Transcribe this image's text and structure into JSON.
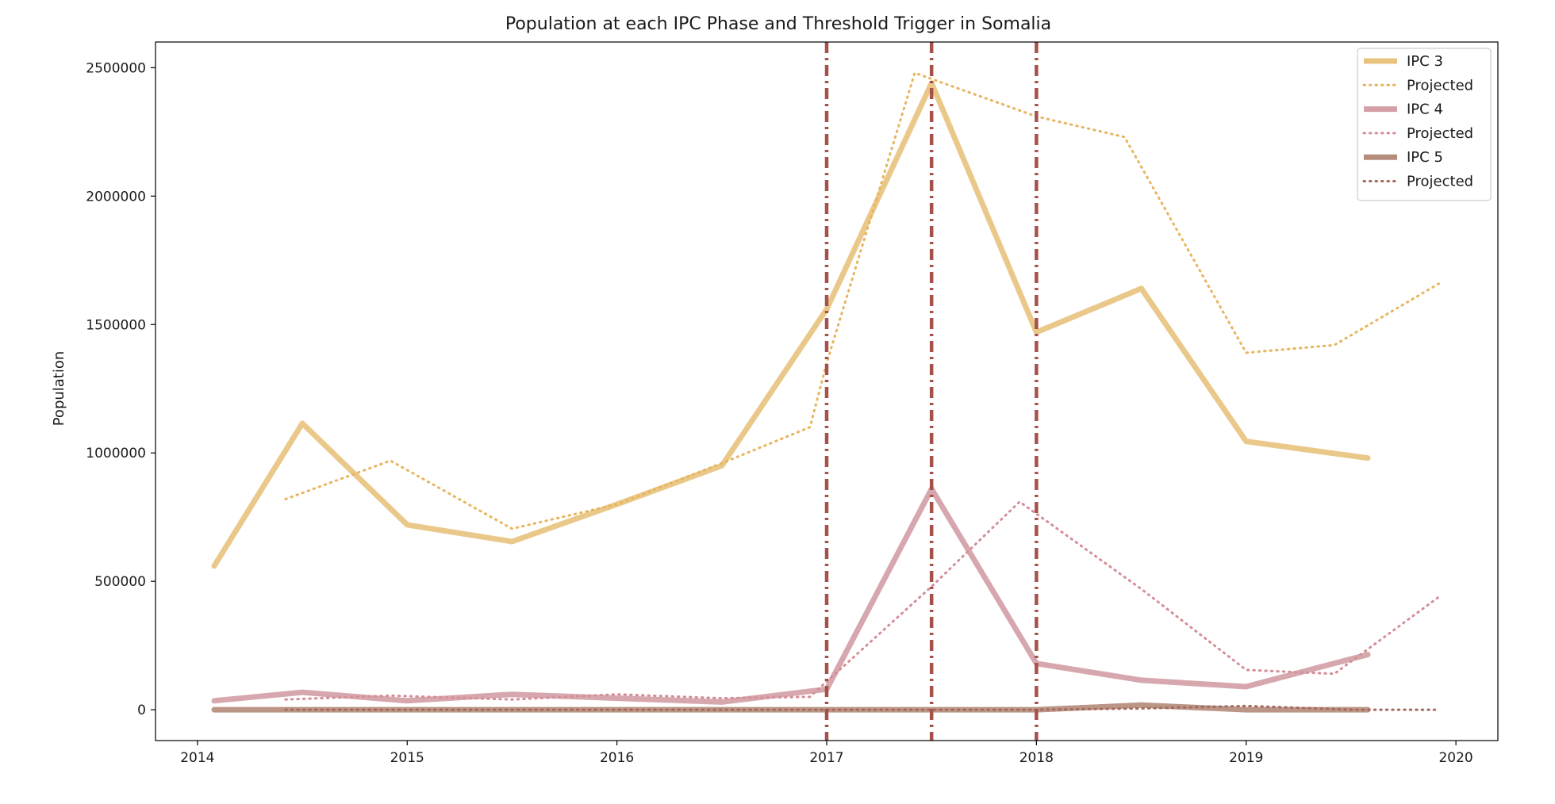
{
  "chart_data": {
    "type": "line",
    "title": "Population at each IPC Phase and Threshold Trigger in Somalia",
    "xlabel": "",
    "ylabel": "Population",
    "xlim": [
      2013.8,
      2020.2
    ],
    "ylim": [
      -120000,
      2600000
    ],
    "xticks": [
      2014,
      2015,
      2016,
      2017,
      2018,
      2019,
      2020
    ],
    "yticks": [
      0,
      500000,
      1000000,
      1500000,
      2000000,
      2500000
    ],
    "grid": false,
    "legend_position": "top-right",
    "threshold_triggers": [
      2017.0,
      2017.5,
      2018.0
    ],
    "threshold_color": "#a5524b",
    "series": [
      {
        "name": "IPC 3",
        "style": "solid",
        "color": "#e8c37f",
        "x": [
          2014.08,
          2014.5,
          2015.0,
          2015.5,
          2016.0,
          2016.5,
          2017.0,
          2017.5,
          2018.0,
          2018.5,
          2019.0,
          2019.58
        ],
        "y": [
          560000,
          1115000,
          720000,
          655000,
          800000,
          950000,
          1560000,
          2440000,
          1470000,
          1640000,
          1045000,
          980000
        ]
      },
      {
        "name": "Projected",
        "style": "dotted",
        "color": "#e8b55e",
        "x": [
          2014.42,
          2014.92,
          2015.5,
          2016.0,
          2016.5,
          2016.92,
          2017.0,
          2017.42,
          2018.0,
          2018.42,
          2019.0,
          2019.42,
          2019.92
        ],
        "y": [
          820000,
          970000,
          705000,
          800000,
          960000,
          1100000,
          1350000,
          2480000,
          2310000,
          2230000,
          1390000,
          1420000,
          1660000
        ]
      },
      {
        "name": "IPC 4",
        "style": "solid",
        "color": "#d4a0a7",
        "x": [
          2014.08,
          2014.5,
          2015.0,
          2015.5,
          2016.0,
          2016.5,
          2017.0,
          2017.5,
          2018.0,
          2018.5,
          2019.0,
          2019.58
        ],
        "y": [
          35000,
          68000,
          35000,
          60000,
          45000,
          30000,
          80000,
          860000,
          180000,
          115000,
          90000,
          215000
        ]
      },
      {
        "name": "Projected",
        "style": "dotted",
        "color": "#d48f98",
        "x": [
          2014.42,
          2014.92,
          2015.5,
          2016.0,
          2016.5,
          2016.92,
          2017.0,
          2017.5,
          2017.92,
          2018.5,
          2019.0,
          2019.42,
          2019.92
        ],
        "y": [
          40000,
          55000,
          40000,
          60000,
          45000,
          50000,
          110000,
          480000,
          810000,
          470000,
          155000,
          140000,
          440000
        ]
      },
      {
        "name": "IPC 5",
        "style": "solid",
        "color": "#b58d7d",
        "x": [
          2014.08,
          2014.5,
          2015.0,
          2015.5,
          2016.0,
          2016.5,
          2017.0,
          2017.5,
          2018.0,
          2018.5,
          2019.0,
          2019.58
        ],
        "y": [
          0,
          0,
          0,
          0,
          0,
          0,
          0,
          0,
          0,
          18000,
          0,
          0
        ]
      },
      {
        "name": "Projected",
        "style": "dotted",
        "color": "#a66a5e",
        "x": [
          2014.42,
          2015.0,
          2015.5,
          2016.0,
          2016.5,
          2017.0,
          2017.5,
          2018.0,
          2018.5,
          2019.0,
          2019.5,
          2019.92
        ],
        "y": [
          0,
          0,
          0,
          0,
          0,
          0,
          0,
          0,
          5000,
          15000,
          0,
          0
        ]
      }
    ]
  }
}
